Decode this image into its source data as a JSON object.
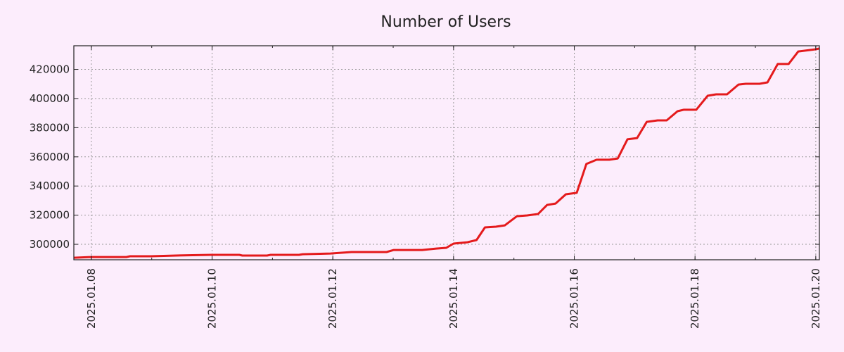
{
  "chart_data": {
    "type": "line",
    "title": "Number of Users",
    "xlabel": "",
    "ylabel": "",
    "grid": true,
    "xlim": [
      7.71,
      20.06
    ],
    "ylim": [
      289400,
      436200
    ],
    "x_ticks": [
      {
        "value": 8,
        "label": "2025.01.08"
      },
      {
        "value": 10,
        "label": "2025.01.10"
      },
      {
        "value": 12,
        "label": "2025.01.12"
      },
      {
        "value": 14,
        "label": "2025.01.14"
      },
      {
        "value": 16,
        "label": "2025.01.16"
      },
      {
        "value": 18,
        "label": "2025.01.18"
      },
      {
        "value": 20,
        "label": "2025.01.20"
      }
    ],
    "y_ticks": [
      {
        "value": 300000,
        "label": "300000"
      },
      {
        "value": 320000,
        "label": "320000"
      },
      {
        "value": 340000,
        "label": "340000"
      },
      {
        "value": 360000,
        "label": "360000"
      },
      {
        "value": 380000,
        "label": "380000"
      },
      {
        "value": 400000,
        "label": "400000"
      },
      {
        "value": 420000,
        "label": "420000"
      }
    ],
    "series": [
      {
        "name": "Number of Users",
        "color": "#e41a1c",
        "x": [
          7.71,
          8.0,
          8.58,
          8.64,
          8.99,
          9.4,
          9.98,
          10.45,
          10.5,
          10.91,
          10.97,
          11.44,
          11.5,
          11.96,
          12.31,
          12.89,
          13.01,
          13.48,
          13.71,
          13.88,
          14.0,
          14.23,
          14.38,
          14.52,
          14.7,
          14.85,
          15.05,
          15.22,
          15.4,
          15.55,
          15.69,
          15.86,
          16.04,
          16.2,
          16.37,
          16.58,
          16.72,
          16.88,
          17.04,
          17.2,
          17.38,
          17.53,
          17.71,
          17.81,
          18.02,
          18.21,
          18.35,
          18.53,
          18.72,
          18.84,
          19.07,
          19.2,
          19.37,
          19.55,
          19.71,
          20.0,
          20.06
        ],
        "y": [
          290800,
          291300,
          291300,
          291800,
          291800,
          292300,
          292800,
          292800,
          292300,
          292300,
          292800,
          292800,
          293200,
          293700,
          294700,
          294700,
          296100,
          296100,
          297100,
          297600,
          300500,
          301400,
          302900,
          311600,
          312100,
          313000,
          319300,
          319800,
          320800,
          327000,
          328000,
          334300,
          335300,
          355100,
          358000,
          358000,
          358900,
          372000,
          372900,
          384000,
          385000,
          385000,
          391300,
          392300,
          392300,
          401900,
          402900,
          402900,
          409600,
          410100,
          410100,
          411100,
          423700,
          423700,
          432300,
          433800,
          434300
        ]
      }
    ]
  }
}
